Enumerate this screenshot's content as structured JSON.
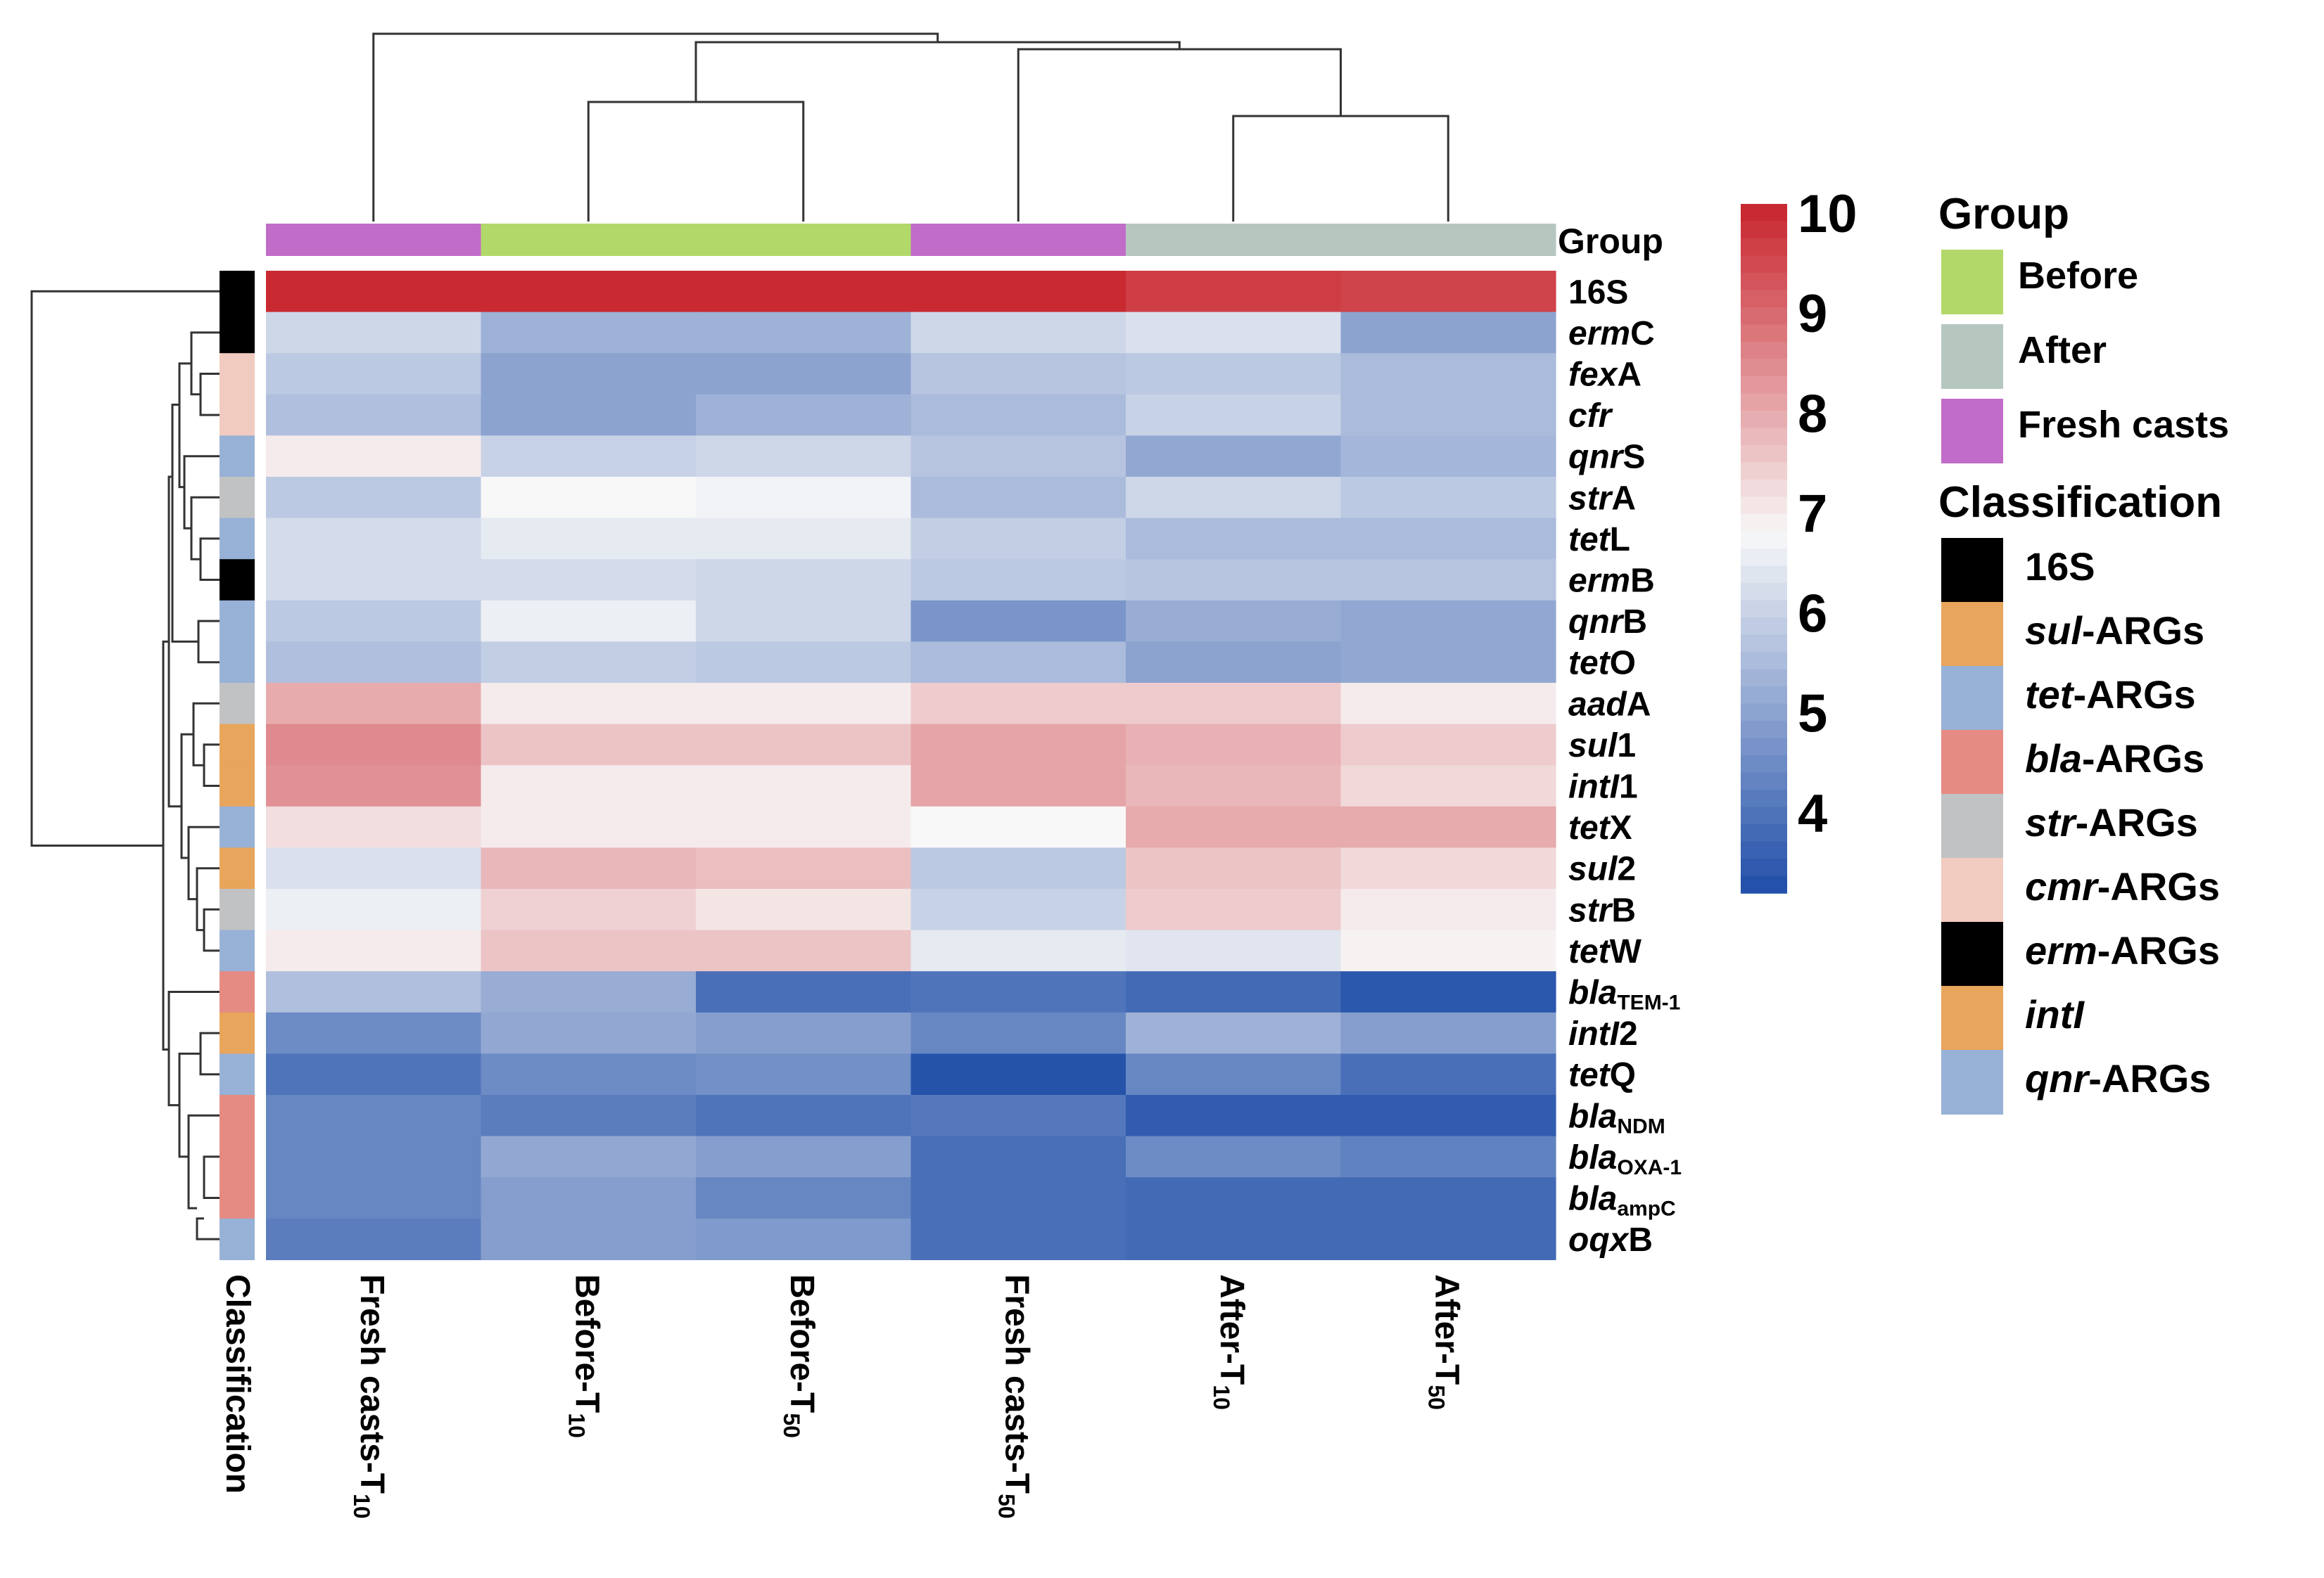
{
  "chart_data": {
    "type": "heatmap",
    "columns": [
      "Fresh casts-T10",
      "Before-T10",
      "Before-T50",
      "Fresh casts-T50",
      "After-T10",
      "After-T50"
    ],
    "column_labels": [
      {
        "main": "Fresh casts-T",
        "sub": "10"
      },
      {
        "main": "Before-T",
        "sub": "10"
      },
      {
        "main": "Before-T",
        "sub": "50"
      },
      {
        "main": "Fresh casts-T",
        "sub": "50"
      },
      {
        "main": "After-T",
        "sub": "10"
      },
      {
        "main": "After-T",
        "sub": "50"
      }
    ],
    "column_groups": [
      "Fresh casts",
      "Before",
      "Before",
      "Fresh casts",
      "After",
      "After"
    ],
    "rows": [
      {
        "name": "16S",
        "italic": "",
        "rest": "16S",
        "sub": "",
        "class": "16S",
        "values": [
          10.0,
          10.0,
          10.0,
          10.0,
          9.7,
          9.6
        ]
      },
      {
        "name": "ermC",
        "italic": "erm",
        "rest": "C",
        "sub": "",
        "class": "erm-ARGs",
        "values": [
          6.1,
          5.3,
          5.3,
          6.1,
          6.3,
          5.0
        ]
      },
      {
        "name": "fexA",
        "italic": "fex",
        "rest": "A",
        "sub": "",
        "class": "cmr-ARGs",
        "values": [
          5.8,
          5.0,
          5.0,
          5.7,
          5.8,
          5.5
        ]
      },
      {
        "name": "cfr",
        "italic": "cfr",
        "rest": "",
        "sub": "",
        "class": "cmr-ARGs",
        "values": [
          5.6,
          5.0,
          5.3,
          5.5,
          6.0,
          5.5
        ]
      },
      {
        "name": "qnrS",
        "italic": "qnr",
        "rest": "S",
        "sub": "",
        "class": "qnr-ARGs",
        "values": [
          7.0,
          6.0,
          6.1,
          5.7,
          5.1,
          5.4
        ]
      },
      {
        "name": "strA",
        "italic": "str",
        "rest": "A",
        "sub": "",
        "class": "str-ARGs",
        "values": [
          5.8,
          6.8,
          6.7,
          5.5,
          6.1,
          5.8
        ]
      },
      {
        "name": "tetL",
        "italic": "tet",
        "rest": "L",
        "sub": "",
        "class": "tet-ARGs",
        "values": [
          6.2,
          6.5,
          6.5,
          5.9,
          5.5,
          5.5
        ]
      },
      {
        "name": "ermB",
        "italic": "erm",
        "rest": "B",
        "sub": "",
        "class": "erm-ARGs",
        "values": [
          6.2,
          6.2,
          6.1,
          5.8,
          5.7,
          5.7
        ]
      },
      {
        "name": "qnrB",
        "italic": "qnr",
        "rest": "B",
        "sub": "",
        "class": "qnr-ARGs",
        "values": [
          5.8,
          6.6,
          6.1,
          4.7,
          5.2,
          5.1
        ]
      },
      {
        "name": "tetO",
        "italic": "tet",
        "rest": "O",
        "sub": "",
        "class": "tet-ARGs",
        "values": [
          5.6,
          5.9,
          5.8,
          5.5,
          5.0,
          5.1
        ]
      },
      {
        "name": "aadA",
        "italic": "aad",
        "rest": "A",
        "sub": "",
        "class": "str-ARGs",
        "values": [
          8.0,
          7.0,
          7.0,
          7.5,
          7.5,
          7.0
        ]
      },
      {
        "name": "sul1",
        "italic": "sul",
        "rest": "1",
        "sub": "",
        "class": "sul-ARGs",
        "values": [
          8.5,
          7.6,
          7.6,
          8.1,
          7.9,
          7.5
        ]
      },
      {
        "name": "intI1",
        "italic": "intI",
        "rest": "1",
        "sub": "",
        "class": "intI",
        "values": [
          8.4,
          7.0,
          7.0,
          8.1,
          7.8,
          7.3
        ]
      },
      {
        "name": "tetX",
        "italic": "tet",
        "rest": "X",
        "sub": "",
        "class": "tet-ARGs",
        "values": [
          7.2,
          7.0,
          7.0,
          6.8,
          8.0,
          8.0
        ]
      },
      {
        "name": "sul2",
        "italic": "sul",
        "rest": "2",
        "sub": "",
        "class": "sul-ARGs",
        "values": [
          6.3,
          7.8,
          7.7,
          5.8,
          7.6,
          7.3
        ]
      },
      {
        "name": "strB",
        "italic": "str",
        "rest": "B",
        "sub": "",
        "class": "str-ARGs",
        "values": [
          6.6,
          7.4,
          7.1,
          6.0,
          7.5,
          7.0
        ]
      },
      {
        "name": "tetW",
        "italic": "tet",
        "rest": "W",
        "sub": "",
        "class": "tet-ARGs",
        "values": [
          7.0,
          7.6,
          7.6,
          6.5,
          6.4,
          6.9
        ]
      },
      {
        "name": "blaTEM-1",
        "italic": "bla",
        "rest": "",
        "sub": "TEM-1",
        "class": "bla-ARGs",
        "values": [
          5.6,
          5.2,
          3.9,
          4.0,
          3.8,
          3.4
        ]
      },
      {
        "name": "intI2",
        "italic": "intI",
        "rest": "2",
        "sub": "",
        "class": "intI",
        "values": [
          4.5,
          5.1,
          4.9,
          4.4,
          5.3,
          4.9
        ]
      },
      {
        "name": "tetQ",
        "italic": "tet",
        "rest": "Q",
        "sub": "",
        "class": "tet-ARGs",
        "values": [
          4.0,
          4.5,
          4.6,
          3.3,
          4.4,
          3.9
        ]
      },
      {
        "name": "blaNDM",
        "italic": "bla",
        "rest": "",
        "sub": "NDM",
        "class": "bla-ARGs",
        "values": [
          4.4,
          4.2,
          4.0,
          4.1,
          3.5,
          3.5
        ]
      },
      {
        "name": "blaOXA-1",
        "italic": "bla",
        "rest": "",
        "sub": "OXA-1",
        "class": "bla-ARGs",
        "values": [
          4.4,
          5.1,
          4.9,
          3.9,
          4.5,
          4.3
        ]
      },
      {
        "name": "blaampC",
        "italic": "bla",
        "rest": "",
        "sub": "ampC",
        "class": "bla-ARGs",
        "values": [
          4.4,
          4.9,
          4.4,
          3.9,
          3.8,
          3.8
        ]
      },
      {
        "name": "oqxB",
        "italic": "oqx",
        "rest": "B",
        "sub": "",
        "class": "qnr-ARGs",
        "values": [
          4.2,
          4.9,
          4.8,
          3.9,
          3.8,
          3.8
        ]
      }
    ],
    "color_scale": {
      "min": 3.2,
      "max": 10.1,
      "ticks": [
        10,
        9,
        8,
        7,
        6,
        5,
        4
      ],
      "low": "#1f4ea8",
      "mid": "#f8f8f8",
      "high": "#c8232b",
      "mid_value": 6.8
    },
    "group_annotation_title": "Group",
    "classification_axis_label": "Classification"
  },
  "legend": {
    "group_title": "Group",
    "group_items": [
      {
        "label": "Before",
        "color": "#b3d86a"
      },
      {
        "label": "After",
        "color": "#b6c7bf"
      },
      {
        "label": "Fresh casts",
        "color": "#c06cc8"
      }
    ],
    "class_title": "Classification",
    "class_items": [
      {
        "key": "16S",
        "italic": "",
        "rest": "16S",
        "color": "#000000"
      },
      {
        "key": "sul-ARGs",
        "italic": "sul",
        "rest": "-ARGs",
        "color": "#e8a55c"
      },
      {
        "key": "tet-ARGs",
        "italic": "tet",
        "rest": "-ARGs",
        "color": "#98b1d6"
      },
      {
        "key": "bla-ARGs",
        "italic": "bla",
        "rest": "-ARGs",
        "color": "#e58b83"
      },
      {
        "key": "str-ARGs",
        "italic": "str",
        "rest": "-ARGs",
        "color": "#c1c2c4"
      },
      {
        "key": "cmr-ARGs",
        "italic": "cmr",
        "rest": "-ARGs",
        "color": "#f1cbbf"
      },
      {
        "key": "erm-ARGs",
        "italic": "erm",
        "rest": "-ARGs",
        "color": "#000000"
      },
      {
        "key": "intI",
        "italic": "intI",
        "rest": "",
        "color": "#e8a55c"
      },
      {
        "key": "qnr-ARGs",
        "italic": "qnr",
        "rest": "-ARGs",
        "color": "#98b1d6"
      }
    ]
  }
}
